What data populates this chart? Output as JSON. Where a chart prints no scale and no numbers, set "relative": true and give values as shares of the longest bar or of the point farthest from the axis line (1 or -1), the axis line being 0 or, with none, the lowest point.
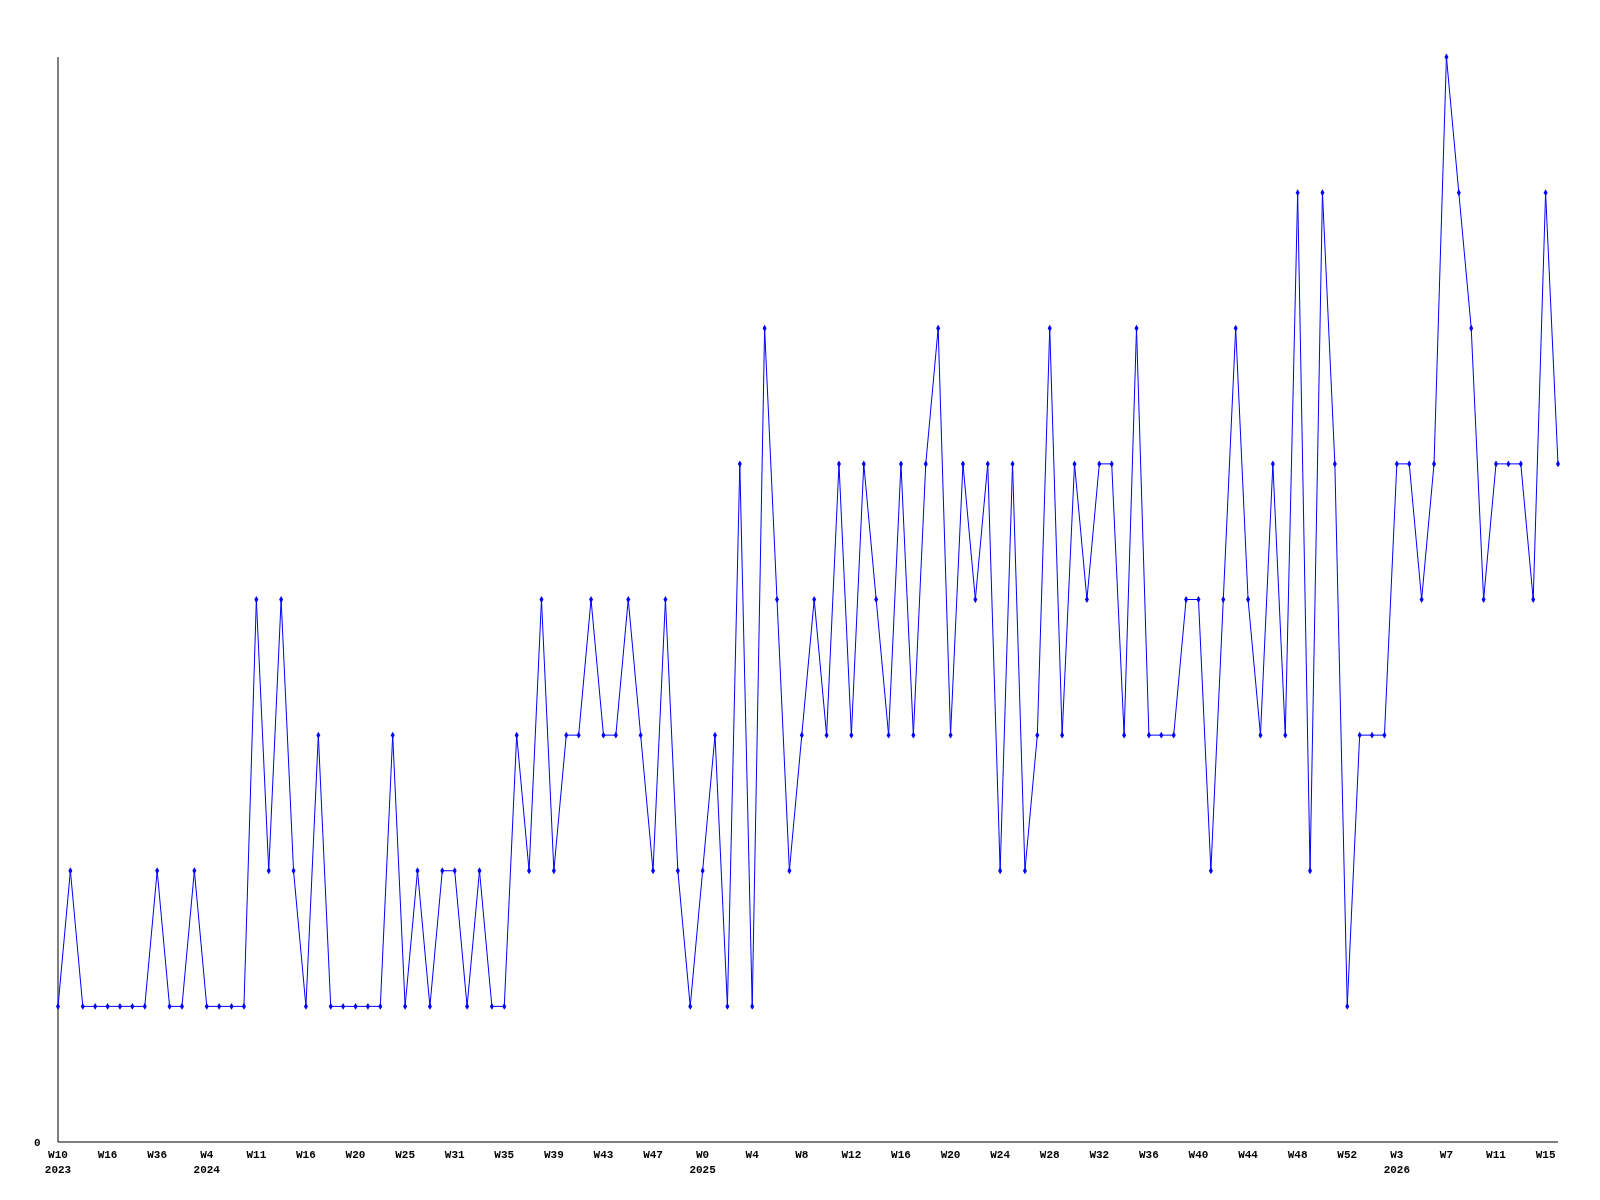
{
  "chart_data": {
    "type": "line",
    "relative": true,
    "marker": "diamond",
    "annotations": [
      "0"
    ],
    "categories": [
      "W10\n2023",
      null,
      null,
      null,
      "W16",
      null,
      null,
      null,
      "W36",
      null,
      null,
      null,
      "W4\n2024",
      null,
      null,
      null,
      "W11",
      null,
      null,
      null,
      "W16",
      null,
      null,
      null,
      "W20",
      null,
      null,
      null,
      "W25",
      null,
      null,
      null,
      "W31",
      null,
      null,
      null,
      "W35",
      null,
      null,
      null,
      "W39",
      null,
      null,
      null,
      "W43",
      null,
      null,
      null,
      "W47",
      null,
      null,
      null,
      "W0\n2025",
      null,
      null,
      null,
      "W4",
      null,
      null,
      null,
      "W8",
      null,
      null,
      null,
      "W12",
      null,
      null,
      null,
      "W16",
      null,
      null,
      null,
      "W20",
      null,
      null,
      null,
      "W24",
      null,
      null,
      null,
      "W28",
      null,
      null,
      null,
      "W32",
      null,
      null,
      null,
      "W36",
      null,
      null,
      null,
      "W40",
      null,
      null,
      null,
      "W44",
      null,
      null,
      null,
      "W48",
      null,
      null,
      null,
      "W52",
      null,
      null,
      null,
      "W3\n2026",
      null,
      null,
      null,
      "W7",
      null,
      null,
      null,
      "W11",
      null,
      null,
      null,
      "W15",
      null
    ],
    "series": [
      {
        "color": "#0000ff",
        "values": [
          0.125,
          0.25,
          0.125,
          0.125,
          0.125,
          0.125,
          0.125,
          0.125,
          0.25,
          0.125,
          0.125,
          0.25,
          0.125,
          0.125,
          0.125,
          0.125,
          0.5,
          0.25,
          0.5,
          0.25,
          0.125,
          0.375,
          0.125,
          0.125,
          0.125,
          0.125,
          0.125,
          0.375,
          0.125,
          0.25,
          0.125,
          0.25,
          0.25,
          0.125,
          0.25,
          0.125,
          0.125,
          0.375,
          0.25,
          0.5,
          0.25,
          0.375,
          0.375,
          0.5,
          0.375,
          0.375,
          0.5,
          0.375,
          0.25,
          0.5,
          0.25,
          0.125,
          0.25,
          0.375,
          0.125,
          0.625,
          0.125,
          0.75,
          0.5,
          0.25,
          0.375,
          0.5,
          0.375,
          0.625,
          0.375,
          0.625,
          0.5,
          0.375,
          0.625,
          0.375,
          0.625,
          0.75,
          0.375,
          0.625,
          0.5,
          0.625,
          0.25,
          0.625,
          0.25,
          0.375,
          0.75,
          0.375,
          0.625,
          0.5,
          0.625,
          0.625,
          0.375,
          0.75,
          0.375,
          0.375,
          0.375,
          0.5,
          0.5,
          0.25,
          0.5,
          0.75,
          0.5,
          0.375,
          0.625,
          0.375,
          0.875,
          0.25,
          0.875,
          0.625,
          0.125,
          0.375,
          0.375,
          0.375,
          0.625,
          0.625,
          0.5,
          0.625,
          1,
          0.875,
          0.75,
          0.5,
          0.625,
          0.625,
          0.625,
          0.5,
          0.875,
          0.625
        ]
      }
    ]
  }
}
